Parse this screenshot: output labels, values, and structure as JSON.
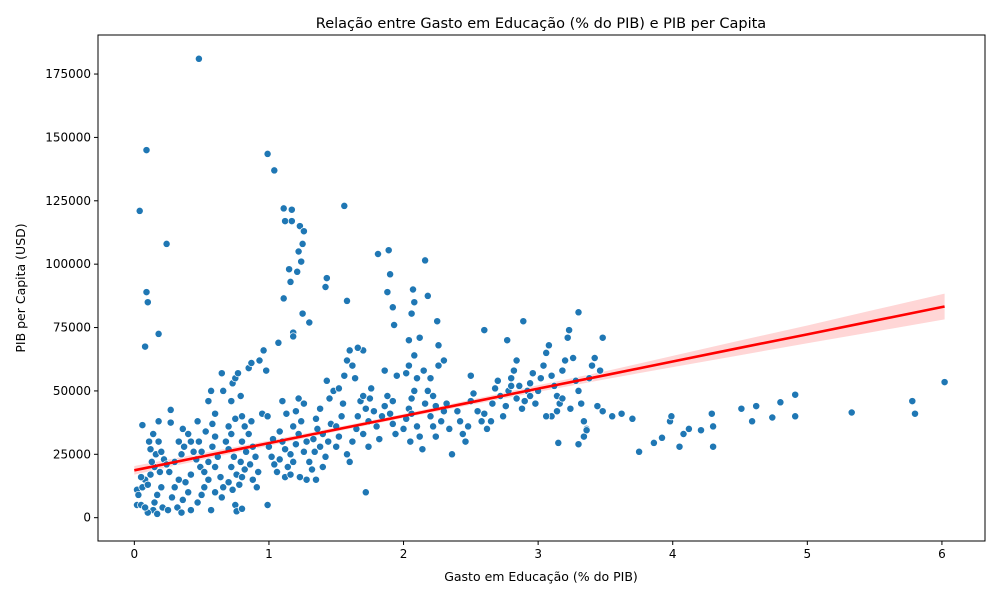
{
  "chart_data": {
    "type": "scatter",
    "title": "Relação entre Gasto em Educação (% do PIB) e PIB per Capita",
    "xlabel": "Gasto em Educação (% do PIB)",
    "ylabel": "PIB per Capita (USD)",
    "xlim": [
      -0.27,
      6.32
    ],
    "ylim": [
      -9200,
      190400
    ],
    "xticks": [
      0,
      1,
      2,
      3,
      4,
      5,
      6
    ],
    "xtick_labels": [
      "0",
      "1",
      "2",
      "3",
      "4",
      "5",
      "6"
    ],
    "yticks": [
      0,
      25000,
      50000,
      75000,
      100000,
      125000,
      150000,
      175000
    ],
    "ytick_labels": [
      "0",
      "25000",
      "50000",
      "75000",
      "100000",
      "125000",
      "150000",
      "175000"
    ],
    "grid": false,
    "legend": "none",
    "colors": {
      "points": "#1f77b4",
      "regression": "#ff0000",
      "confidence_band": "#ff9999"
    },
    "points": [
      [
        0.48,
        181000
      ],
      [
        0.09,
        145000
      ],
      [
        0.04,
        121000
      ],
      [
        0.24,
        108000
      ],
      [
        0.09,
        89000
      ],
      [
        0.1,
        85000
      ],
      [
        0.18,
        72500
      ],
      [
        0.08,
        67500
      ],
      [
        0.06,
        36500
      ],
      [
        0.27,
        42500
      ],
      [
        0.27,
        37500
      ],
      [
        0.18,
        38000
      ],
      [
        0.02,
        5000
      ],
      [
        0.05,
        5000
      ],
      [
        0.02,
        11000
      ],
      [
        0.03,
        9000
      ],
      [
        0.06,
        12000
      ],
      [
        0.08,
        15000
      ],
      [
        0.05,
        16000
      ],
      [
        0.1,
        13000
      ],
      [
        0.12,
        17000
      ],
      [
        0.15,
        20000
      ],
      [
        0.13,
        22000
      ],
      [
        0.16,
        25000
      ],
      [
        0.12,
        27000
      ],
      [
        0.11,
        30000
      ],
      [
        0.14,
        33000
      ],
      [
        0.18,
        30000
      ],
      [
        0.2,
        26000
      ],
      [
        0.22,
        23000
      ],
      [
        0.19,
        18000
      ],
      [
        0.2,
        12000
      ],
      [
        0.17,
        9000
      ],
      [
        0.15,
        6000
      ],
      [
        0.14,
        3000
      ],
      [
        0.17,
        1500
      ],
      [
        0.1,
        2000
      ],
      [
        0.08,
        4000
      ],
      [
        0.21,
        4000
      ],
      [
        0.25,
        3000
      ],
      [
        0.28,
        8000
      ],
      [
        0.3,
        12000
      ],
      [
        0.33,
        15000
      ],
      [
        0.26,
        18000
      ],
      [
        0.24,
        21000
      ],
      [
        0.3,
        22000
      ],
      [
        0.35,
        25000
      ],
      [
        0.37,
        28000
      ],
      [
        0.33,
        30000
      ],
      [
        0.4,
        33000
      ],
      [
        0.36,
        35000
      ],
      [
        0.42,
        30000
      ],
      [
        0.44,
        26000
      ],
      [
        0.46,
        23000
      ],
      [
        0.49,
        20000
      ],
      [
        0.42,
        17000
      ],
      [
        0.38,
        14000
      ],
      [
        0.4,
        10000
      ],
      [
        0.36,
        7000
      ],
      [
        0.32,
        4000
      ],
      [
        0.35,
        2000
      ],
      [
        0.42,
        3000
      ],
      [
        0.47,
        6000
      ],
      [
        0.5,
        9000
      ],
      [
        0.52,
        12000
      ],
      [
        0.55,
        15000
      ],
      [
        0.52,
        18000
      ],
      [
        0.55,
        22000
      ],
      [
        0.5,
        26000
      ],
      [
        0.48,
        30000
      ],
      [
        0.53,
        34000
      ],
      [
        0.47,
        38000
      ],
      [
        0.58,
        37000
      ],
      [
        0.6,
        32000
      ],
      [
        0.58,
        28000
      ],
      [
        0.62,
        24000
      ],
      [
        0.6,
        20000
      ],
      [
        0.64,
        16000
      ],
      [
        0.66,
        12000
      ],
      [
        0.6,
        10000
      ],
      [
        0.57,
        3000
      ],
      [
        0.65,
        8000
      ],
      [
        0.55,
        46000
      ],
      [
        0.57,
        50000
      ],
      [
        0.6,
        41000
      ],
      [
        0.65,
        57000
      ],
      [
        0.66,
        50000
      ],
      [
        0.72,
        46000
      ],
      [
        0.73,
        53000
      ],
      [
        0.75,
        55000
      ],
      [
        0.77,
        57000
      ],
      [
        0.79,
        48000
      ],
      [
        0.8,
        40000
      ],
      [
        0.75,
        39000
      ],
      [
        0.7,
        36000
      ],
      [
        0.72,
        33000
      ],
      [
        0.68,
        30000
      ],
      [
        0.7,
        27000
      ],
      [
        0.74,
        24000
      ],
      [
        0.72,
        20000
      ],
      [
        0.76,
        17000
      ],
      [
        0.7,
        14000
      ],
      [
        0.73,
        11000
      ],
      [
        0.78,
        13000
      ],
      [
        0.8,
        16000
      ],
      [
        0.82,
        19000
      ],
      [
        0.79,
        22000
      ],
      [
        0.83,
        26000
      ],
      [
        0.8,
        30000
      ],
      [
        0.85,
        33000
      ],
      [
        0.82,
        36000
      ],
      [
        0.87,
        38000
      ],
      [
        0.88,
        28000
      ],
      [
        0.9,
        24000
      ],
      [
        0.86,
        21000
      ],
      [
        0.92,
        18000
      ],
      [
        0.88,
        15000
      ],
      [
        0.91,
        12000
      ],
      [
        0.85,
        59000
      ],
      [
        0.87,
        61000
      ],
      [
        0.93,
        62000
      ],
      [
        0.96,
        66000
      ],
      [
        0.98,
        58000
      ],
      [
        0.95,
        41000
      ],
      [
        0.99,
        40000
      ],
      [
        0.75,
        5000
      ],
      [
        0.76,
        2500
      ],
      [
        0.8,
        3500
      ],
      [
        0.99,
        143500
      ],
      [
        1.04,
        137000
      ],
      [
        1.11,
        122000
      ],
      [
        1.12,
        117000
      ],
      [
        1.17,
        121500
      ],
      [
        1.17,
        117000
      ],
      [
        1.23,
        115000
      ],
      [
        1.26,
        113000
      ],
      [
        1.25,
        108000
      ],
      [
        1.22,
        105000
      ],
      [
        1.24,
        101000
      ],
      [
        1.15,
        98000
      ],
      [
        1.21,
        97000
      ],
      [
        1.16,
        93000
      ],
      [
        1.11,
        86500
      ],
      [
        1.25,
        80500
      ],
      [
        1.3,
        77000
      ],
      [
        1.18,
        73000
      ],
      [
        1.18,
        71500
      ],
      [
        1.07,
        69000
      ],
      [
        1.0,
        28000
      ],
      [
        1.02,
        24000
      ],
      [
        1.04,
        21000
      ],
      [
        1.06,
        18000
      ],
      [
        1.03,
        31000
      ],
      [
        1.08,
        34000
      ],
      [
        1.1,
        30000
      ],
      [
        1.12,
        27000
      ],
      [
        1.08,
        23000
      ],
      [
        1.14,
        20000
      ],
      [
        1.12,
        16000
      ],
      [
        1.16,
        17000
      ],
      [
        1.18,
        22000
      ],
      [
        1.16,
        25000
      ],
      [
        1.2,
        29000
      ],
      [
        1.22,
        33000
      ],
      [
        1.18,
        36000
      ],
      [
        1.24,
        38000
      ],
      [
        1.2,
        42000
      ],
      [
        1.26,
        45000
      ],
      [
        1.22,
        47000
      ],
      [
        1.28,
        30000
      ],
      [
        1.26,
        26000
      ],
      [
        1.3,
        22000
      ],
      [
        1.28,
        15000
      ],
      [
        1.32,
        19000
      ],
      [
        1.34,
        26000
      ],
      [
        1.33,
        31000
      ],
      [
        1.36,
        35000
      ],
      [
        1.35,
        39000
      ],
      [
        1.38,
        43000
      ],
      [
        1.4,
        33000
      ],
      [
        1.38,
        28000
      ],
      [
        1.42,
        24000
      ],
      [
        1.4,
        20000
      ],
      [
        1.44,
        30000
      ],
      [
        1.46,
        37000
      ],
      [
        1.45,
        47000
      ],
      [
        1.43,
        54000
      ],
      [
        1.48,
        50000
      ],
      [
        1.42,
        91000
      ],
      [
        1.43,
        94500
      ],
      [
        1.1,
        46000
      ],
      [
        1.13,
        41000
      ],
      [
        0.99,
        5000
      ],
      [
        1.23,
        16000
      ],
      [
        1.35,
        15000
      ],
      [
        1.5,
        28000
      ],
      [
        1.52,
        32000
      ],
      [
        1.5,
        36000
      ],
      [
        1.54,
        40000
      ],
      [
        1.55,
        45000
      ],
      [
        1.52,
        51000
      ],
      [
        1.56,
        56000
      ],
      [
        1.58,
        62000
      ],
      [
        1.6,
        66000
      ],
      [
        1.62,
        60000
      ],
      [
        1.64,
        55000
      ],
      [
        1.58,
        25000
      ],
      [
        1.6,
        22000
      ],
      [
        1.62,
        30000
      ],
      [
        1.65,
        35000
      ],
      [
        1.66,
        40000
      ],
      [
        1.68,
        46000
      ],
      [
        1.7,
        48000
      ],
      [
        1.72,
        43000
      ],
      [
        1.74,
        38000
      ],
      [
        1.7,
        33000
      ],
      [
        1.74,
        28000
      ],
      [
        1.72,
        10000
      ],
      [
        1.75,
        47000
      ],
      [
        1.76,
        51000
      ],
      [
        1.78,
        42000
      ],
      [
        1.8,
        36000
      ],
      [
        1.82,
        31000
      ],
      [
        1.84,
        40000
      ],
      [
        1.86,
        44000
      ],
      [
        1.86,
        58000
      ],
      [
        1.88,
        48000
      ],
      [
        1.9,
        41000
      ],
      [
        1.92,
        37000
      ],
      [
        1.94,
        33000
      ],
      [
        1.92,
        46000
      ],
      [
        1.95,
        56000
      ],
      [
        1.56,
        123000
      ],
      [
        1.58,
        85500
      ],
      [
        1.81,
        104000
      ],
      [
        1.89,
        105500
      ],
      [
        1.9,
        96000
      ],
      [
        1.88,
        89000
      ],
      [
        1.92,
        83000
      ],
      [
        1.93,
        76000
      ],
      [
        1.7,
        66000
      ],
      [
        1.66,
        67000
      ],
      [
        2.0,
        35000
      ],
      [
        2.02,
        39000
      ],
      [
        2.04,
        43000
      ],
      [
        2.06,
        47000
      ],
      [
        2.02,
        57000
      ],
      [
        2.04,
        60000
      ],
      [
        2.08,
        64000
      ],
      [
        2.1,
        55000
      ],
      [
        2.08,
        50000
      ],
      [
        2.06,
        41000
      ],
      [
        2.1,
        36000
      ],
      [
        2.12,
        32000
      ],
      [
        2.14,
        27000
      ],
      [
        2.16,
        45000
      ],
      [
        2.18,
        50000
      ],
      [
        2.2,
        55000
      ],
      [
        2.22,
        48000
      ],
      [
        2.24,
        44000
      ],
      [
        2.2,
        40000
      ],
      [
        2.22,
        36000
      ],
      [
        2.24,
        32000
      ],
      [
        2.28,
        38000
      ],
      [
        2.3,
        42000
      ],
      [
        2.26,
        60000
      ],
      [
        2.3,
        62000
      ],
      [
        2.32,
        45000
      ],
      [
        2.34,
        35000
      ],
      [
        2.36,
        25000
      ],
      [
        2.07,
        90000
      ],
      [
        2.08,
        85000
      ],
      [
        2.06,
        80500
      ],
      [
        2.16,
        101500
      ],
      [
        2.18,
        87500
      ],
      [
        2.25,
        77500
      ],
      [
        2.04,
        70000
      ],
      [
        2.12,
        71000
      ],
      [
        2.26,
        68000
      ],
      [
        2.15,
        58000
      ],
      [
        2.05,
        30000
      ],
      [
        2.4,
        42000
      ],
      [
        2.42,
        38000
      ],
      [
        2.44,
        33000
      ],
      [
        2.46,
        30000
      ],
      [
        2.48,
        36000
      ],
      [
        2.5,
        46000
      ],
      [
        2.52,
        49000
      ],
      [
        2.5,
        56000
      ],
      [
        2.55,
        42000
      ],
      [
        2.58,
        38000
      ],
      [
        2.6,
        41000
      ],
      [
        2.62,
        35000
      ],
      [
        2.65,
        38000
      ],
      [
        2.66,
        45000
      ],
      [
        2.68,
        51000
      ],
      [
        2.7,
        54000
      ],
      [
        2.72,
        48000
      ],
      [
        2.74,
        40000
      ],
      [
        2.76,
        44000
      ],
      [
        2.78,
        50000
      ],
      [
        2.8,
        55000
      ],
      [
        2.82,
        58000
      ],
      [
        2.84,
        47000
      ],
      [
        2.86,
        52000
      ],
      [
        2.88,
        43000
      ],
      [
        2.9,
        46000
      ],
      [
        2.92,
        50000
      ],
      [
        2.94,
        53000
      ],
      [
        2.96,
        57000
      ],
      [
        2.98,
        45000
      ],
      [
        2.6,
        74000
      ],
      [
        2.77,
        70000
      ],
      [
        2.89,
        77500
      ],
      [
        2.8,
        52000
      ],
      [
        2.84,
        62000
      ],
      [
        2.94,
        48000
      ],
      [
        3.0,
        50000
      ],
      [
        3.02,
        55000
      ],
      [
        3.04,
        60000
      ],
      [
        3.06,
        65000
      ],
      [
        3.08,
        68000
      ],
      [
        3.1,
        56000
      ],
      [
        3.12,
        52000
      ],
      [
        3.14,
        48000
      ],
      [
        3.16,
        45000
      ],
      [
        3.18,
        58000
      ],
      [
        3.2,
        62000
      ],
      [
        3.22,
        71000
      ],
      [
        3.23,
        74000
      ],
      [
        3.26,
        63000
      ],
      [
        3.28,
        54000
      ],
      [
        3.3,
        50000
      ],
      [
        3.32,
        45000
      ],
      [
        3.3,
        81000
      ],
      [
        3.1,
        40000
      ],
      [
        3.14,
        42000
      ],
      [
        3.18,
        47000
      ],
      [
        3.24,
        43000
      ],
      [
        3.34,
        38000
      ],
      [
        3.36,
        35000
      ],
      [
        3.38,
        55000
      ],
      [
        3.4,
        60000
      ],
      [
        3.42,
        63000
      ],
      [
        3.46,
        58000
      ],
      [
        3.48,
        71000
      ],
      [
        3.44,
        44000
      ],
      [
        3.3,
        29000
      ],
      [
        3.34,
        32000
      ],
      [
        3.36,
        34500
      ],
      [
        3.15,
        29500
      ],
      [
        3.06,
        40000
      ],
      [
        3.48,
        42000
      ],
      [
        3.55,
        40000
      ],
      [
        3.62,
        41000
      ],
      [
        3.7,
        39000
      ],
      [
        3.75,
        26000
      ],
      [
        3.86,
        29500
      ],
      [
        3.92,
        31500
      ],
      [
        3.98,
        38000
      ],
      [
        3.99,
        40000
      ],
      [
        4.05,
        28000
      ],
      [
        4.08,
        33000
      ],
      [
        4.12,
        35000
      ],
      [
        4.21,
        34500
      ],
      [
        4.3,
        36000
      ],
      [
        4.29,
        41000
      ],
      [
        4.3,
        28000
      ],
      [
        4.51,
        43000
      ],
      [
        4.59,
        38000
      ],
      [
        4.62,
        44000
      ],
      [
        4.74,
        39500
      ],
      [
        4.8,
        45500
      ],
      [
        4.91,
        48500
      ],
      [
        4.91,
        40000
      ],
      [
        5.33,
        41500
      ],
      [
        5.78,
        46000
      ],
      [
        5.8,
        41000
      ],
      [
        6.02,
        53500
      ]
    ],
    "regression": {
      "x": [
        0.0,
        0.5,
        1.0,
        1.5,
        2.0,
        2.5,
        3.0,
        3.5,
        4.0,
        4.5,
        5.0,
        5.5,
        6.02
      ],
      "y": [
        18700,
        24100,
        29400,
        34800,
        40100,
        45500,
        50900,
        56200,
        61600,
        67000,
        72300,
        77700,
        83300
      ],
      "ci_low": [
        17000,
        22800,
        28400,
        34000,
        39300,
        44500,
        49600,
        54600,
        59400,
        64100,
        68800,
        73400,
        78200
      ],
      "ci_high": [
        20400,
        25400,
        30400,
        35600,
        40900,
        46500,
        52200,
        57800,
        63800,
        69900,
        75800,
        82000,
        88400
      ]
    }
  }
}
